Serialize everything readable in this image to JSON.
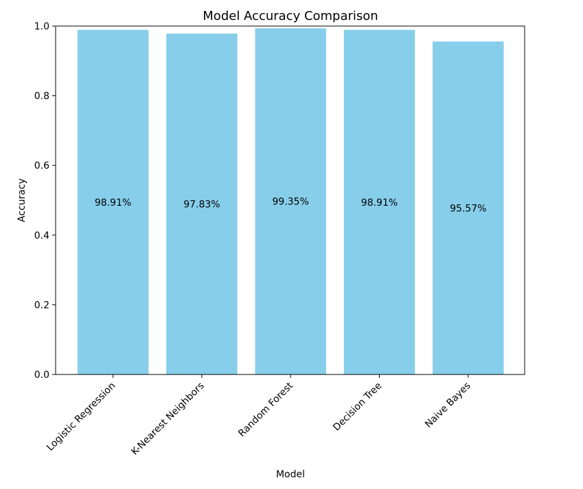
{
  "chart_data": {
    "type": "bar",
    "title": "Model Accuracy Comparison",
    "xlabel": "Model",
    "ylabel": "Accuracy",
    "categories": [
      "Logistic Regression",
      "K-Nearest Neighbors",
      "Random Forest",
      "Decision Tree",
      "Naive Bayes"
    ],
    "values": [
      0.9891,
      0.9783,
      0.9935,
      0.9891,
      0.9557
    ],
    "data_labels": [
      "98.91%",
      "97.83%",
      "99.35%",
      "98.91%",
      "95.57%"
    ],
    "ylim": [
      0,
      1
    ],
    "yticks": [
      "0.0",
      "0.2",
      "0.4",
      "0.6",
      "0.8",
      "1.0"
    ],
    "bar_color": "#87ceeb",
    "grid": false,
    "legend": "none"
  }
}
